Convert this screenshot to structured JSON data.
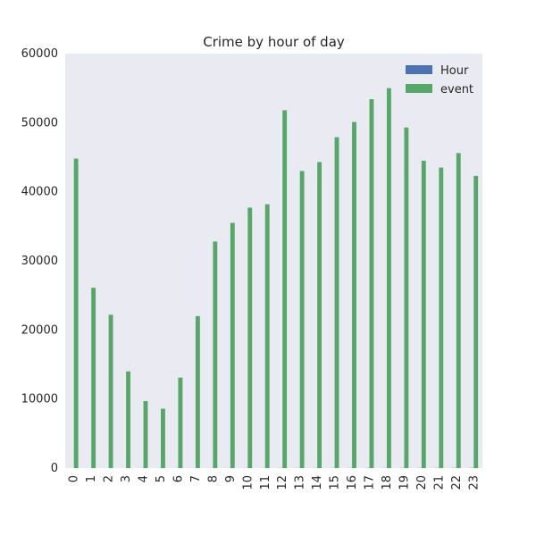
{
  "chart_data": {
    "type": "bar",
    "title": "Crime by hour of day",
    "xlabel": "",
    "ylabel": "",
    "ylim": [
      0,
      60000
    ],
    "yticks": [
      0,
      10000,
      20000,
      30000,
      40000,
      50000,
      60000
    ],
    "grid": false,
    "legend_position": "top-right",
    "categories": [
      "0",
      "1",
      "2",
      "3",
      "4",
      "5",
      "6",
      "7",
      "8",
      "9",
      "10",
      "11",
      "12",
      "13",
      "14",
      "15",
      "16",
      "17",
      "18",
      "19",
      "20",
      "21",
      "22",
      "23"
    ],
    "series": [
      {
        "name": "Hour",
        "color": "#4c72b0",
        "values": [
          0,
          1,
          2,
          3,
          4,
          5,
          6,
          7,
          8,
          9,
          10,
          11,
          12,
          13,
          14,
          15,
          16,
          17,
          18,
          19,
          20,
          21,
          22,
          23
        ]
      },
      {
        "name": "event",
        "color": "#55a868",
        "values": [
          44800,
          26100,
          22200,
          14000,
          9700,
          8600,
          13100,
          22000,
          32800,
          35500,
          37700,
          38200,
          51800,
          43000,
          44300,
          47900,
          50100,
          53400,
          55000,
          49300,
          44500,
          43500,
          45600,
          42300
        ]
      }
    ]
  },
  "style": {
    "plot_background": "#eaeaf2",
    "text_color": "#262626"
  }
}
